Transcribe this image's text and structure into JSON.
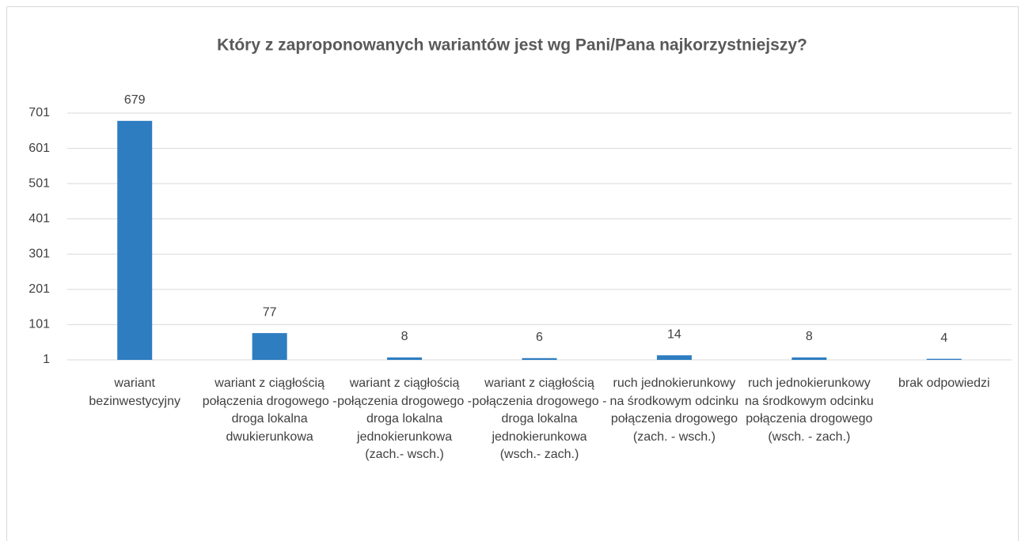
{
  "chart_data": {
    "type": "bar",
    "title": "Który z zaproponowanych wariantów jest wg Pani/Pana najkorzystniejszy?",
    "categories": [
      "wariant bezinwestycyjny",
      "wariant z ciągłością połączenia drogowego - droga lokalna dwukierunkowa",
      "wariant z ciągłością połączenia drogowego - droga lokalna jednokierunkowa (zach.- wsch.)",
      "wariant z ciągłością połączenia drogowego - droga lokalna jednokierunkowa (wsch.- zach.)",
      "ruch jednokierunkowy na środkowym odcinku połączenia drogowego (zach. - wsch.)",
      "ruch jednokierunkowy na środkowym odcinku połączenia drogowego (wsch. - zach.)",
      "brak odpowiedzi"
    ],
    "values": [
      679,
      77,
      8,
      6,
      14,
      8,
      4
    ],
    "color": "#2e7dc1",
    "ylim": [
      1,
      701
    ],
    "yticks": [
      1,
      101,
      201,
      301,
      401,
      501,
      601,
      701
    ],
    "grid": true
  }
}
